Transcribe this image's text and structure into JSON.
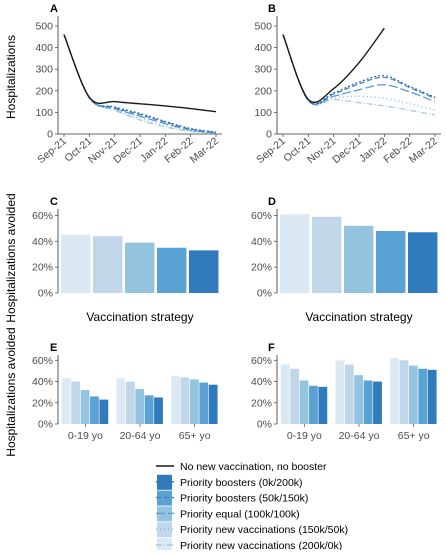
{
  "figure": {
    "ylabel_top": "Hospitalizations",
    "ylabel_middle": "Hospitalizations avoided",
    "ylabel_bottom": "Hospitalizations avoided"
  },
  "legend": [
    {
      "label": "No new vaccination, no booster",
      "color": "#1a1a1a",
      "style": "solid"
    },
    {
      "label": "Priority boosters (0k/200k)",
      "color": "#2f7bbd",
      "style": "dotted"
    },
    {
      "label": "Priority boosters (50k/150k)",
      "color": "#5aa2d3",
      "style": "dashed"
    },
    {
      "label": "Priority equal (100k/100k)",
      "color": "#94c4e0",
      "style": "longdash"
    },
    {
      "label": "Priority new vaccinations (150k/50k)",
      "color": "#c2d6ea",
      "style": "dots"
    },
    {
      "label": "Priority new vaccinations (200k/0k)",
      "color": "#dbe9f5",
      "style": "dashdot"
    }
  ],
  "chart_data": [
    {
      "panel": "A",
      "type": "line",
      "x": [
        "Sep-21",
        "Oct-21",
        "Nov-21",
        "Dec-21",
        "Jan-22",
        "Feb-22",
        "Mar-22"
      ],
      "ylim": [
        0,
        500
      ],
      "yticks": [
        0,
        100,
        200,
        300,
        400,
        500
      ],
      "series": [
        {
          "name": "No new vaccination, no booster",
          "values": [
            460,
            170,
            150,
            140,
            130,
            118,
            103
          ]
        },
        {
          "name": "Priority boosters (0k/200k)",
          "values": [
            460,
            168,
            125,
            95,
            58,
            25,
            8
          ]
        },
        {
          "name": "Priority boosters (50k/150k)",
          "values": [
            460,
            168,
            122,
            90,
            55,
            22,
            7
          ]
        },
        {
          "name": "Priority equal (100k/100k)",
          "values": [
            460,
            168,
            118,
            82,
            48,
            18,
            6
          ]
        },
        {
          "name": "Priority new vaccinations (150k/50k)",
          "values": [
            460,
            168,
            114,
            72,
            40,
            15,
            5
          ]
        },
        {
          "name": "Priority new vaccinations (200k/0k)",
          "values": [
            460,
            168,
            110,
            65,
            33,
            12,
            4
          ]
        }
      ]
    },
    {
      "panel": "B",
      "type": "line",
      "x": [
        "Sep-21",
        "Oct-21",
        "Nov-21",
        "Dec-21",
        "Jan-22",
        "Feb-22",
        "Mar-22"
      ],
      "ylim": [
        0,
        500
      ],
      "yticks": [
        0,
        100,
        200,
        300,
        400,
        500
      ],
      "series": [
        {
          "name": "No new vaccination, no booster",
          "values": [
            460,
            160,
            210,
            330,
            490,
            null,
            null
          ]
        },
        {
          "name": "Priority boosters (0k/200k)",
          "values": [
            460,
            155,
            190,
            240,
            270,
            220,
            170
          ]
        },
        {
          "name": "Priority boosters (50k/150k)",
          "values": [
            460,
            155,
            185,
            232,
            262,
            215,
            165
          ]
        },
        {
          "name": "Priority equal (100k/100k)",
          "values": [
            460,
            155,
            175,
            205,
            228,
            195,
            150
          ]
        },
        {
          "name": "Priority new vaccinations (150k/50k)",
          "values": [
            460,
            155,
            168,
            175,
            165,
            140,
            110
          ]
        },
        {
          "name": "Priority new vaccinations (200k/0k)",
          "values": [
            460,
            155,
            160,
            145,
            130,
            110,
            88
          ]
        }
      ]
    },
    {
      "panel": "C",
      "type": "bar",
      "xlabel": "Vaccination strategy",
      "ylim": [
        0,
        0.6
      ],
      "yticks": [
        "0%",
        "20%",
        "40%",
        "60%"
      ],
      "values": [
        0.45,
        0.44,
        0.39,
        0.35,
        0.33
      ]
    },
    {
      "panel": "D",
      "type": "bar",
      "xlabel": "Vaccination strategy",
      "ylim": [
        0,
        0.6
      ],
      "yticks": [
        "0%",
        "20%",
        "40%",
        "60%"
      ],
      "values": [
        0.61,
        0.59,
        0.52,
        0.48,
        0.47
      ]
    },
    {
      "panel": "E",
      "type": "bar",
      "categories": [
        "0-19 yo",
        "20-64 yo",
        "65+ yo"
      ],
      "ylim": [
        0,
        0.6
      ],
      "yticks": [
        "0%",
        "20%",
        "40%",
        "60%"
      ],
      "groups": [
        [
          0.43,
          0.4,
          0.32,
          0.26,
          0.23
        ],
        [
          0.43,
          0.4,
          0.33,
          0.27,
          0.25
        ],
        [
          0.45,
          0.44,
          0.42,
          0.39,
          0.37
        ]
      ]
    },
    {
      "panel": "F",
      "type": "bar",
      "categories": [
        "0-19 yo",
        "20-64 yo",
        "65+ yo"
      ],
      "ylim": [
        0,
        0.6
      ],
      "yticks": [
        "0%",
        "20%",
        "40%",
        "60%"
      ],
      "groups": [
        [
          0.56,
          0.52,
          0.41,
          0.36,
          0.35
        ],
        [
          0.6,
          0.56,
          0.46,
          0.41,
          0.4
        ],
        [
          0.62,
          0.6,
          0.55,
          0.52,
          0.51
        ]
      ]
    }
  ]
}
